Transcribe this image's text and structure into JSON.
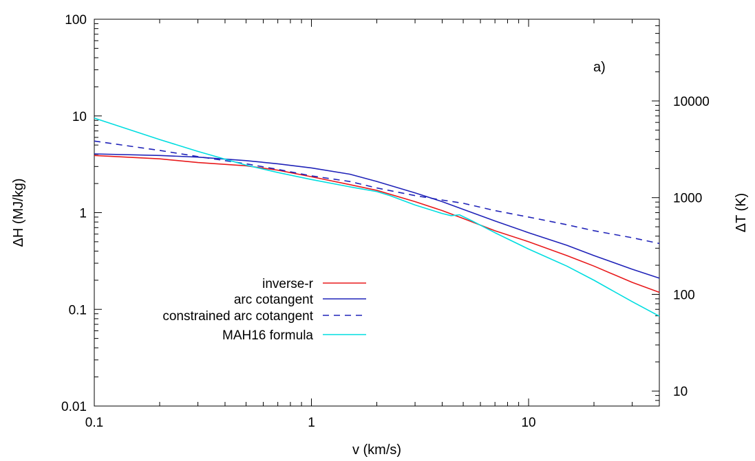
{
  "chart_data": {
    "type": "line",
    "title": "",
    "annotation": "a)",
    "xlabel": "v (km/s)",
    "ylabel": "ΔH (MJ/kg)",
    "y2label": "ΔT (K)",
    "xscale": "log",
    "yscale": "log",
    "y2scale": "log",
    "xlim": [
      0.1,
      40
    ],
    "ylim": [
      0.01,
      100
    ],
    "y2lim": [
      7,
      70000
    ],
    "grid": false,
    "legend_position": "bottom-left",
    "x_ticks": [
      {
        "value": 0.1,
        "label": "0.1"
      },
      {
        "value": 1,
        "label": "1"
      },
      {
        "value": 10,
        "label": "10"
      }
    ],
    "y_ticks": [
      {
        "value": 0.01,
        "label": "0.01"
      },
      {
        "value": 0.1,
        "label": "0.1"
      },
      {
        "value": 1,
        "label": "1"
      },
      {
        "value": 10,
        "label": "10"
      },
      {
        "value": 100,
        "label": "100"
      }
    ],
    "y2_ticks": [
      {
        "value": 10,
        "label": "10"
      },
      {
        "value": 100,
        "label": "100"
      },
      {
        "value": 1000,
        "label": "1000"
      },
      {
        "value": 10000,
        "label": "10000"
      }
    ],
    "series": [
      {
        "name": "inverse-r",
        "color": "#e8191b",
        "dash": "solid",
        "points": [
          [
            0.1,
            3.9
          ],
          [
            0.2,
            3.6
          ],
          [
            0.3,
            3.3
          ],
          [
            0.5,
            3.05
          ],
          [
            0.7,
            2.75
          ],
          [
            1.0,
            2.35
          ],
          [
            1.5,
            1.95
          ],
          [
            2.0,
            1.7
          ],
          [
            3.0,
            1.3
          ],
          [
            4.0,
            1.05
          ],
          [
            5.0,
            0.87
          ],
          [
            7.0,
            0.65
          ],
          [
            10.0,
            0.5
          ],
          [
            15.0,
            0.36
          ],
          [
            20.0,
            0.28
          ],
          [
            30.0,
            0.19
          ],
          [
            40.0,
            0.15
          ]
        ]
      },
      {
        "name": "arc cotangent",
        "color": "#1f22b8",
        "dash": "solid",
        "points": [
          [
            0.1,
            4.05
          ],
          [
            0.2,
            3.9
          ],
          [
            0.3,
            3.75
          ],
          [
            0.5,
            3.45
          ],
          [
            0.7,
            3.2
          ],
          [
            1.0,
            2.9
          ],
          [
            1.5,
            2.5
          ],
          [
            2.0,
            2.1
          ],
          [
            3.0,
            1.6
          ],
          [
            4.0,
            1.3
          ],
          [
            5.0,
            1.08
          ],
          [
            7.0,
            0.82
          ],
          [
            10.0,
            0.62
          ],
          [
            15.0,
            0.46
          ],
          [
            20.0,
            0.36
          ],
          [
            30.0,
            0.26
          ],
          [
            40.0,
            0.21
          ]
        ]
      },
      {
        "name": "constrained arc cotangent",
        "color": "#1f22b8",
        "dash": "dashed",
        "points": [
          [
            0.1,
            5.5
          ],
          [
            0.2,
            4.4
          ],
          [
            0.3,
            3.8
          ],
          [
            0.5,
            3.2
          ],
          [
            0.7,
            2.8
          ],
          [
            1.0,
            2.4
          ],
          [
            1.5,
            2.1
          ],
          [
            2.0,
            1.8
          ],
          [
            3.0,
            1.5
          ],
          [
            4.0,
            1.35
          ],
          [
            5.0,
            1.25
          ],
          [
            7.0,
            1.05
          ],
          [
            10.0,
            0.9
          ],
          [
            15.0,
            0.75
          ],
          [
            20.0,
            0.65
          ],
          [
            30.0,
            0.55
          ],
          [
            40.0,
            0.48
          ]
        ]
      },
      {
        "name": "MAH16 formula",
        "color": "#00dde0",
        "dash": "solid",
        "points": [
          [
            0.1,
            9.5
          ],
          [
            0.2,
            5.7
          ],
          [
            0.3,
            4.3
          ],
          [
            0.5,
            3.1
          ],
          [
            0.7,
            2.6
          ],
          [
            1.0,
            2.2
          ],
          [
            1.5,
            1.85
          ],
          [
            2.0,
            1.65
          ],
          [
            2.3,
            1.5
          ],
          [
            3.0,
            1.2
          ],
          [
            4.0,
            0.98
          ],
          [
            4.4,
            0.93
          ],
          [
            4.8,
            0.95
          ],
          [
            5.5,
            0.82
          ],
          [
            7.0,
            0.62
          ],
          [
            10.0,
            0.42
          ],
          [
            15.0,
            0.28
          ],
          [
            20.0,
            0.2
          ],
          [
            30.0,
            0.12
          ],
          [
            40.0,
            0.085
          ]
        ]
      }
    ]
  }
}
